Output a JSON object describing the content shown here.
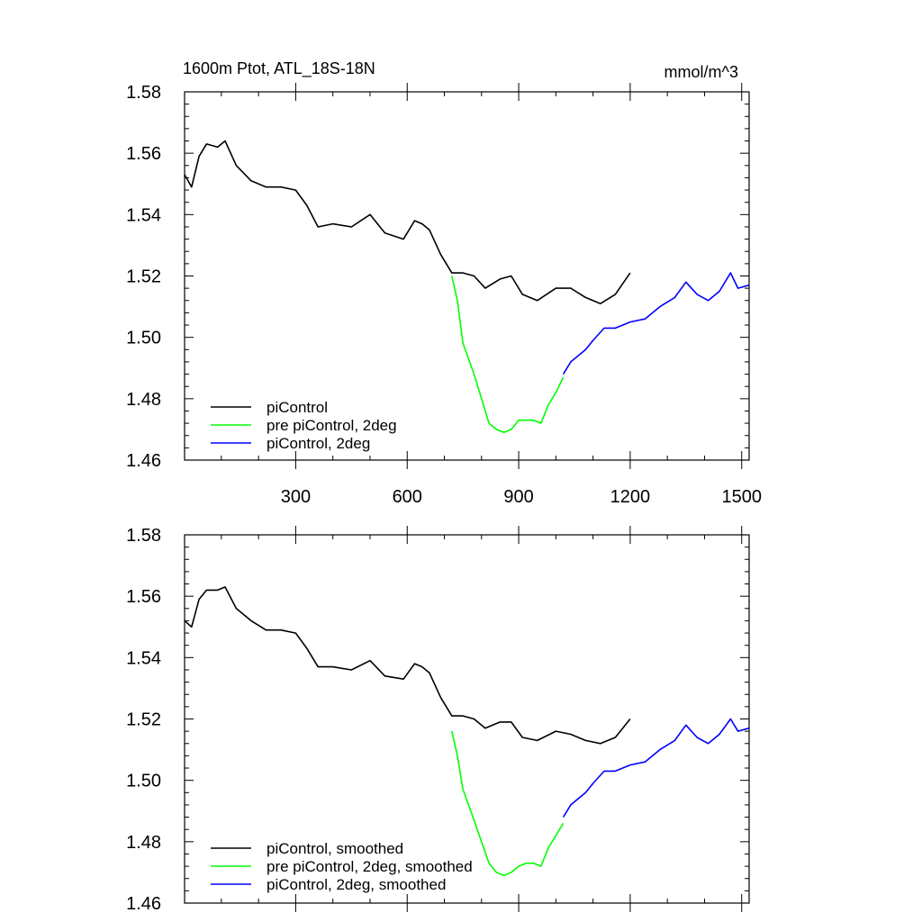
{
  "figure": {
    "title_left": "1600m Ptot, ATL_18S-18N",
    "title_right": "mmol/m^3"
  },
  "chart_data": [
    {
      "type": "line",
      "panel": "top",
      "title": "1600m Ptot, ATL_18S-18N",
      "units": "mmol/m^3",
      "xlabel": "",
      "ylabel": "",
      "xlim": [
        1,
        1520
      ],
      "ylim": [
        1.46,
        1.58
      ],
      "x_tick_values": [
        300,
        600,
        900,
        1200,
        1500
      ],
      "x_tick_labels": [
        "300",
        "600",
        "900",
        "1200",
        "1500"
      ],
      "y_tick_values": [
        1.46,
        1.48,
        1.5,
        1.52,
        1.54,
        1.56,
        1.58
      ],
      "y_tick_labels": [
        "1.46",
        "1.48",
        "1.50",
        "1.52",
        "1.54",
        "1.56",
        "1.58"
      ],
      "grid": false,
      "legend_position": "bottom-left",
      "series": [
        {
          "name": "piControl",
          "color": "#000000",
          "x": [
            1,
            20,
            40,
            60,
            90,
            110,
            140,
            180,
            220,
            260,
            300,
            330,
            360,
            400,
            450,
            500,
            540,
            590,
            620,
            640,
            660,
            690,
            720,
            750,
            780,
            810,
            850,
            880,
            910,
            950,
            1000,
            1040,
            1080,
            1120,
            1160,
            1200
          ],
          "y": [
            1.553,
            1.549,
            1.559,
            1.563,
            1.562,
            1.564,
            1.556,
            1.551,
            1.549,
            1.549,
            1.548,
            1.543,
            1.536,
            1.537,
            1.536,
            1.54,
            1.534,
            1.532,
            1.538,
            1.537,
            1.535,
            1.527,
            1.521,
            1.521,
            1.52,
            1.516,
            1.519,
            1.52,
            1.514,
            1.512,
            1.516,
            1.516,
            1.513,
            1.511,
            1.514,
            1.521
          ]
        },
        {
          "name": "pre piControl, 2deg",
          "color": "#00ff00",
          "x": [
            720,
            735,
            750,
            765,
            780,
            800,
            820,
            840,
            860,
            880,
            900,
            920,
            940,
            960,
            980,
            1000,
            1020
          ],
          "y": [
            1.52,
            1.512,
            1.498,
            1.493,
            1.488,
            1.48,
            1.472,
            1.47,
            1.469,
            1.47,
            1.473,
            1.473,
            1.473,
            1.472,
            1.478,
            1.482,
            1.487
          ]
        },
        {
          "name": "piControl, 2deg",
          "color": "#0000ff",
          "x": [
            1020,
            1040,
            1060,
            1080,
            1100,
            1130,
            1160,
            1200,
            1240,
            1280,
            1320,
            1350,
            1380,
            1410,
            1440,
            1470,
            1490,
            1520
          ],
          "y": [
            1.488,
            1.492,
            1.494,
            1.496,
            1.499,
            1.503,
            1.503,
            1.505,
            1.506,
            1.51,
            1.513,
            1.518,
            1.514,
            1.512,
            1.515,
            1.521,
            1.516,
            1.517
          ]
        }
      ]
    },
    {
      "type": "line",
      "panel": "bottom",
      "title": "",
      "xlabel": "",
      "ylabel": "",
      "xlim": [
        1,
        1520
      ],
      "ylim": [
        1.46,
        1.58
      ],
      "x_tick_values": [
        300,
        600,
        900,
        1200,
        1500
      ],
      "x_tick_labels": [],
      "y_tick_values": [
        1.46,
        1.48,
        1.5,
        1.52,
        1.54,
        1.56,
        1.58
      ],
      "y_tick_labels": [
        "1.46",
        "1.48",
        "1.50",
        "1.52",
        "1.54",
        "1.56",
        "1.58"
      ],
      "grid": false,
      "legend_position": "bottom-left",
      "series": [
        {
          "name": "piControl, smoothed",
          "color": "#000000",
          "x": [
            1,
            20,
            40,
            60,
            90,
            110,
            140,
            180,
            220,
            260,
            300,
            330,
            360,
            400,
            450,
            500,
            540,
            590,
            620,
            640,
            660,
            690,
            720,
            750,
            780,
            810,
            850,
            880,
            910,
            950,
            1000,
            1040,
            1080,
            1120,
            1160,
            1200
          ],
          "y": [
            1.552,
            1.55,
            1.559,
            1.562,
            1.562,
            1.563,
            1.556,
            1.552,
            1.549,
            1.549,
            1.548,
            1.543,
            1.537,
            1.537,
            1.536,
            1.539,
            1.534,
            1.533,
            1.538,
            1.537,
            1.535,
            1.527,
            1.521,
            1.521,
            1.52,
            1.517,
            1.519,
            1.519,
            1.514,
            1.513,
            1.516,
            1.515,
            1.513,
            1.512,
            1.514,
            1.52
          ]
        },
        {
          "name": "pre piControl, 2deg, smoothed",
          "color": "#00ff00",
          "x": [
            720,
            735,
            750,
            765,
            780,
            800,
            820,
            840,
            860,
            880,
            900,
            920,
            940,
            960,
            980,
            1000,
            1020
          ],
          "y": [
            1.516,
            1.508,
            1.497,
            1.492,
            1.487,
            1.48,
            1.473,
            1.47,
            1.469,
            1.47,
            1.472,
            1.473,
            1.473,
            1.472,
            1.478,
            1.482,
            1.486
          ]
        },
        {
          "name": "piControl, 2deg, smoothed",
          "color": "#0000ff",
          "x": [
            1020,
            1040,
            1060,
            1080,
            1100,
            1130,
            1160,
            1200,
            1240,
            1280,
            1320,
            1350,
            1380,
            1410,
            1440,
            1470,
            1490,
            1520
          ],
          "y": [
            1.488,
            1.492,
            1.494,
            1.496,
            1.499,
            1.503,
            1.503,
            1.505,
            1.506,
            1.51,
            1.513,
            1.518,
            1.514,
            1.512,
            1.515,
            1.52,
            1.516,
            1.517
          ]
        }
      ]
    }
  ]
}
